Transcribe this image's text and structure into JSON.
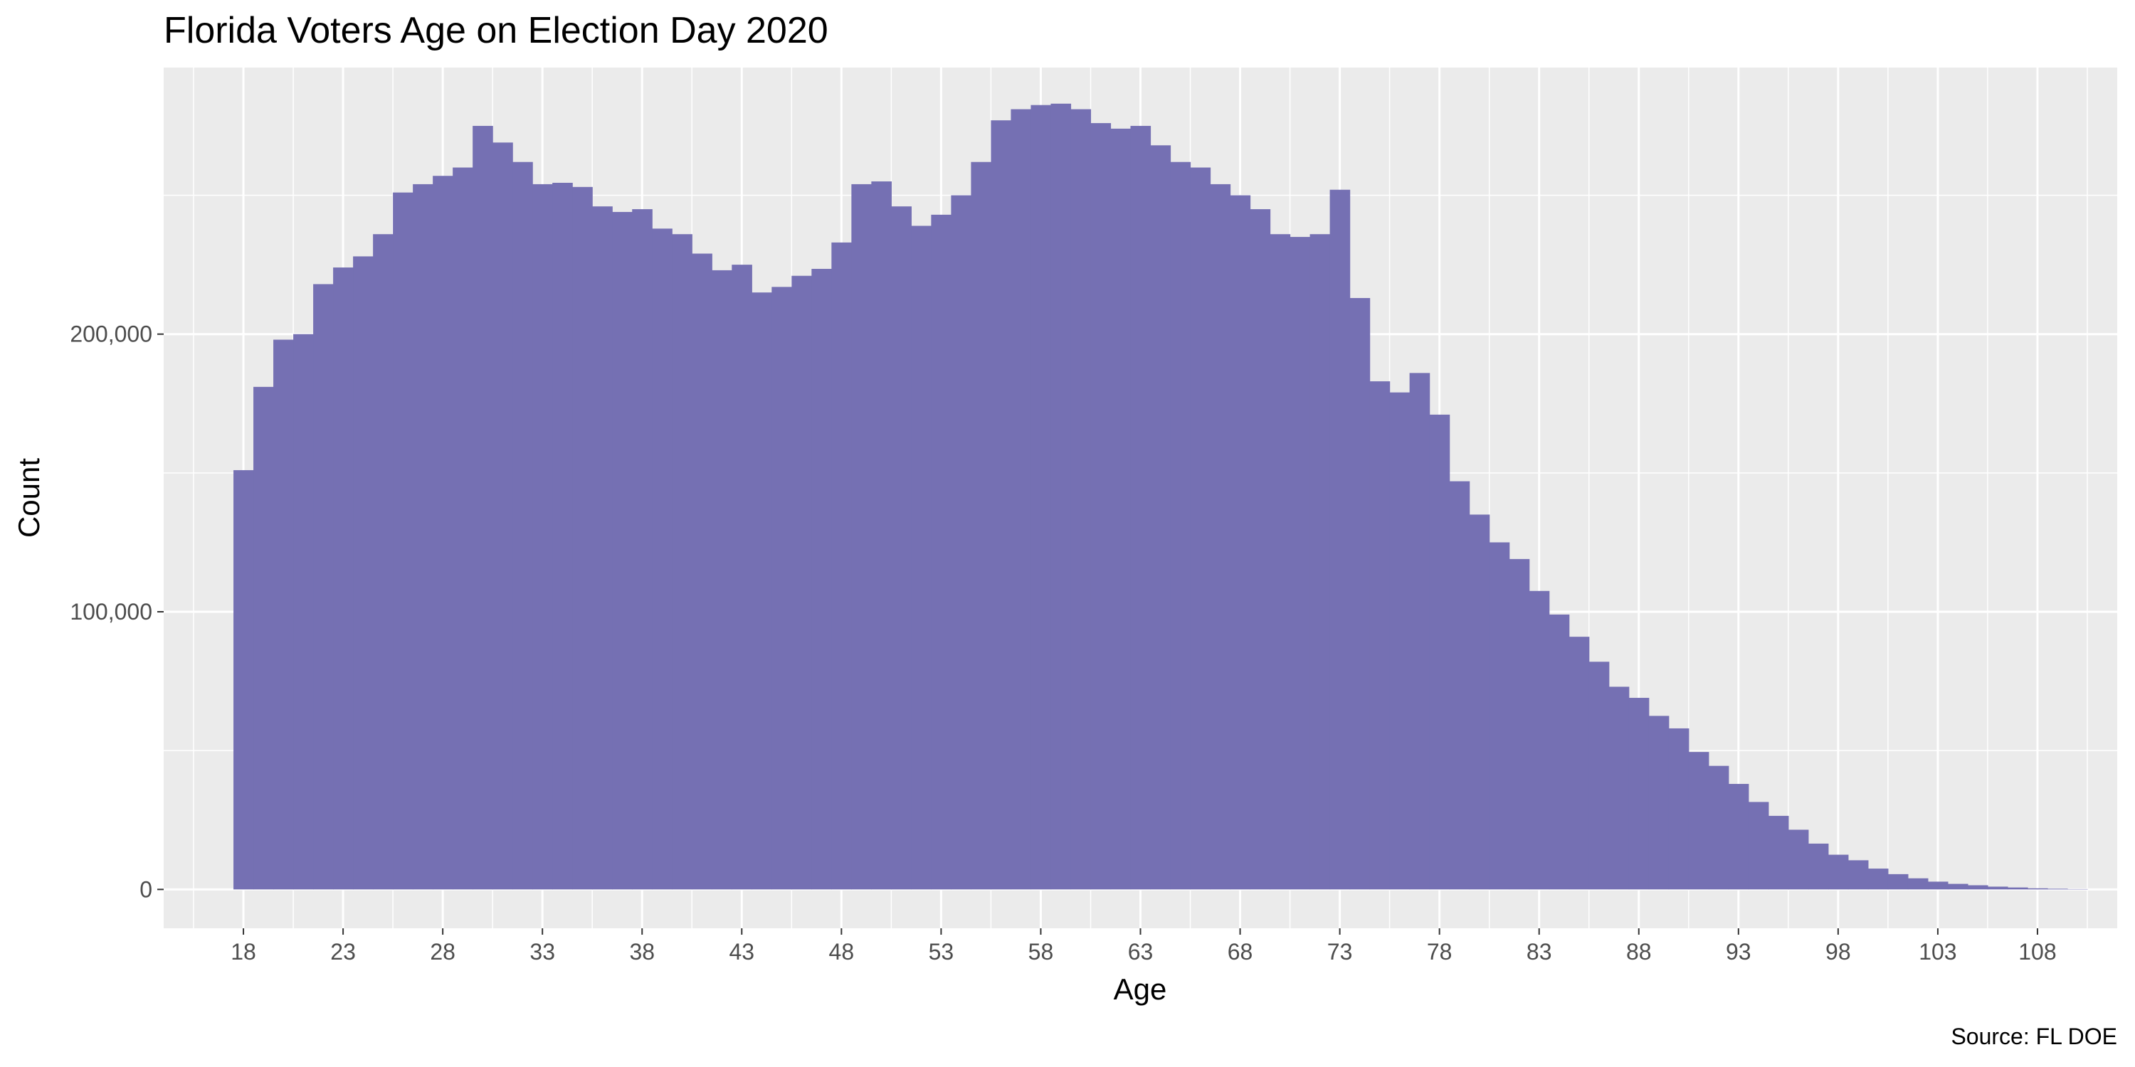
{
  "chart_data": {
    "type": "bar",
    "title": "Florida Voters Age on Election Day 2020",
    "xlabel": "Age",
    "ylabel": "Count",
    "caption": "Source: FL DOE",
    "bar_color": "#7570b3",
    "panel_color": "#ebebeb",
    "grid_color": "#ffffff",
    "grid": true,
    "xlim": [
      14,
      112
    ],
    "ylim": [
      -14000,
      296000
    ],
    "x_ticks": [
      18,
      23,
      28,
      33,
      38,
      43,
      48,
      53,
      58,
      63,
      68,
      73,
      78,
      83,
      88,
      93,
      98,
      103,
      108
    ],
    "y_ticks": [
      0,
      100000,
      200000
    ],
    "y_tick_labels": [
      "0",
      "100,000",
      "200,000"
    ],
    "ages": [
      18,
      19,
      20,
      21,
      22,
      23,
      24,
      25,
      26,
      27,
      28,
      29,
      30,
      31,
      32,
      33,
      34,
      35,
      36,
      37,
      38,
      39,
      40,
      41,
      42,
      43,
      44,
      45,
      46,
      47,
      48,
      49,
      50,
      51,
      52,
      53,
      54,
      55,
      56,
      57,
      58,
      59,
      60,
      61,
      62,
      63,
      64,
      65,
      66,
      67,
      68,
      69,
      70,
      71,
      72,
      73,
      74,
      75,
      76,
      77,
      78,
      79,
      80,
      81,
      82,
      83,
      84,
      85,
      86,
      87,
      88,
      89,
      90,
      91,
      92,
      93,
      94,
      95,
      96,
      97,
      98,
      99,
      100,
      101,
      102,
      103,
      104,
      105,
      106,
      107,
      108,
      109,
      110
    ],
    "values": [
      151000,
      181000,
      198000,
      200000,
      218000,
      224000,
      228000,
      236000,
      251000,
      254000,
      257000,
      260000,
      275000,
      269000,
      262000,
      254000,
      254500,
      253000,
      246000,
      244000,
      245000,
      238000,
      236000,
      229000,
      223000,
      225000,
      215000,
      217000,
      221000,
      223500,
      233000,
      254000,
      255000,
      246000,
      239000,
      243000,
      250000,
      262000,
      277000,
      281000,
      282500,
      283000,
      281000,
      276000,
      274000,
      275000,
      268000,
      262000,
      260000,
      254000,
      250000,
      245000,
      236000,
      235000,
      236000,
      252000,
      213000,
      183000,
      179000,
      186000,
      171000,
      147000,
      135000,
      125000,
      119000,
      107500,
      99000,
      91000,
      82000,
      73000,
      69000,
      62500,
      58000,
      49500,
      44500,
      38000,
      31500,
      26500,
      21500,
      16500,
      12500,
      10500,
      7500,
      5500,
      4000,
      2800,
      2000,
      1500,
      1000,
      700,
      400,
      250,
      120
    ]
  }
}
